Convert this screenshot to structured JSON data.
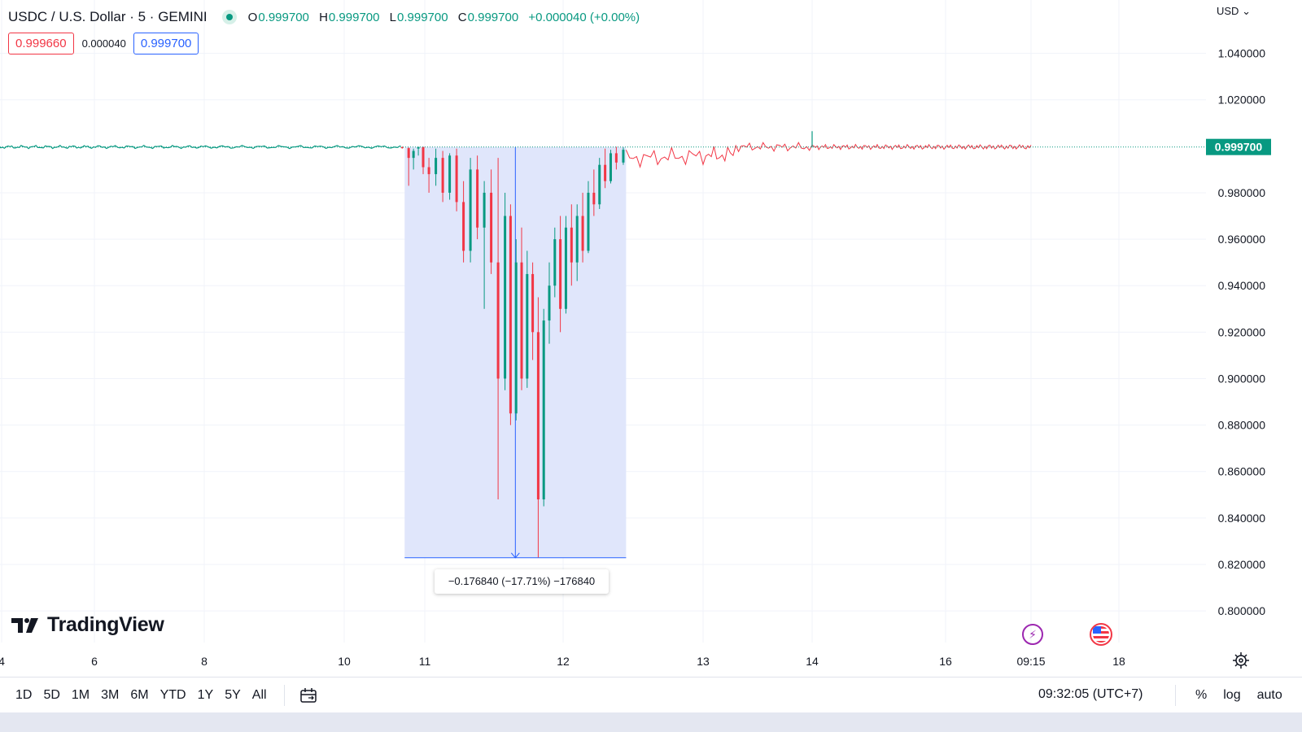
{
  "header": {
    "symbol": "USDC / U.S. Dollar · 5 · GEMINI",
    "ohlc": [
      {
        "key": "O",
        "value": "0.999700"
      },
      {
        "key": "H",
        "value": "0.999700"
      },
      {
        "key": "L",
        "value": "0.999700"
      },
      {
        "key": "C",
        "value": "0.999700"
      }
    ],
    "change": "+0.000040 (+0.00%)",
    "bid": "0.999660",
    "spread": "0.000040",
    "ask": "0.999700",
    "currency": "USD"
  },
  "colors": {
    "up": "#089981",
    "down": "#f23645",
    "accent": "#2962ff",
    "measure_fill": "#dee5fb",
    "grid": "#f0f3fa"
  },
  "measure": {
    "label": "−0.176840 (−17.71%) −176840",
    "from_price": 0.9997,
    "to_price": 0.82286,
    "from_x": 10.75,
    "to_x": 12.45
  },
  "brand": {
    "name": "TradingView"
  },
  "toolbar": {
    "ranges": [
      "1D",
      "5D",
      "1M",
      "3M",
      "6M",
      "YTD",
      "1Y",
      "5Y",
      "All"
    ],
    "time": "09:32:05 (UTC+7)",
    "percent": "%",
    "log": "log",
    "auto": "auto"
  },
  "events": [
    "lightning-icon",
    "us-flag-icon"
  ],
  "chart_data": {
    "type": "candlestick",
    "title": "USDC / U.S. Dollar · 5 · GEMINI",
    "last_price": 0.9997,
    "last_price_label": "0.999700",
    "ylim": [
      0.79,
      1.0495
    ],
    "y_ticks": [
      1.04,
      1.02,
      0.98,
      0.96,
      0.94,
      0.92,
      0.9,
      0.88,
      0.86,
      0.84,
      0.82,
      0.8
    ],
    "y_tick_labels": [
      "1.040000",
      "1.020000",
      "0.980000",
      "0.960000",
      "0.940000",
      "0.920000",
      "0.900000",
      "0.880000",
      "0.860000",
      "0.840000",
      "0.820000",
      "0.800000"
    ],
    "x_ticks": [
      {
        "x": 4,
        "label": "4"
      },
      {
        "x": 6,
        "label": "6"
      },
      {
        "x": 8,
        "label": "8"
      },
      {
        "x": 10,
        "label": "10"
      },
      {
        "x": 11,
        "label": "11"
      },
      {
        "x": 12,
        "label": "12"
      },
      {
        "x": 13,
        "label": "13"
      },
      {
        "x": 14,
        "label": "14"
      },
      {
        "x": 16,
        "label": "16"
      },
      {
        "x": 17.3,
        "label": "09:15"
      },
      {
        "x": 18,
        "label": "18"
      }
    ],
    "candles": [
      [
        10.72,
        0.9996,
        0.9999,
        0.999,
        0.9992
      ],
      [
        10.8,
        0.9992,
        0.9995,
        0.983,
        0.995
      ],
      [
        10.86,
        0.995,
        0.999,
        0.99,
        0.998
      ],
      [
        10.92,
        0.999,
        0.9998,
        0.996,
        0.9997
      ],
      [
        10.98,
        0.9997,
        0.9998,
        0.988,
        0.991
      ],
      [
        11.03,
        0.991,
        0.995,
        0.98,
        0.988
      ],
      [
        11.08,
        0.988,
        0.999,
        0.983,
        0.995
      ],
      [
        11.13,
        0.995,
        0.998,
        0.976,
        0.98
      ],
      [
        11.18,
        0.98,
        0.997,
        0.977,
        0.996
      ],
      [
        11.23,
        0.996,
        0.999,
        0.972,
        0.976
      ],
      [
        11.28,
        0.976,
        0.985,
        0.95,
        0.955
      ],
      [
        11.33,
        0.955,
        0.995,
        0.95,
        0.99
      ],
      [
        11.38,
        0.99,
        0.996,
        0.96,
        0.965
      ],
      [
        11.43,
        0.965,
        0.985,
        0.93,
        0.98
      ],
      [
        11.48,
        0.98,
        0.99,
        0.945,
        0.95
      ],
      [
        11.53,
        0.95,
        0.995,
        0.848,
        0.9
      ],
      [
        11.58,
        0.9,
        0.98,
        0.895,
        0.97
      ],
      [
        11.62,
        0.97,
        0.975,
        0.88,
        0.885
      ],
      [
        11.66,
        0.885,
        0.96,
        0.882,
        0.95
      ],
      [
        11.7,
        0.95,
        0.965,
        0.895,
        0.9
      ],
      [
        11.74,
        0.9,
        0.955,
        0.896,
        0.945
      ],
      [
        11.78,
        0.945,
        0.95,
        0.908,
        0.92
      ],
      [
        11.82,
        0.92,
        0.935,
        0.823,
        0.848
      ],
      [
        11.86,
        0.848,
        0.93,
        0.845,
        0.925
      ],
      [
        11.9,
        0.925,
        0.95,
        0.915,
        0.94
      ],
      [
        11.94,
        0.94,
        0.965,
        0.935,
        0.96
      ],
      [
        11.98,
        0.96,
        0.97,
        0.92,
        0.93
      ],
      [
        12.02,
        0.93,
        0.97,
        0.928,
        0.965
      ],
      [
        12.06,
        0.965,
        0.975,
        0.94,
        0.95
      ],
      [
        12.1,
        0.95,
        0.975,
        0.942,
        0.97
      ],
      [
        12.14,
        0.97,
        0.98,
        0.95,
        0.955
      ],
      [
        12.18,
        0.955,
        0.985,
        0.954,
        0.98
      ],
      [
        12.22,
        0.98,
        0.99,
        0.97,
        0.975
      ],
      [
        12.26,
        0.975,
        0.995,
        0.973,
        0.992
      ],
      [
        12.3,
        0.992,
        0.999,
        0.982,
        0.985
      ],
      [
        12.34,
        0.985,
        0.9985,
        0.984,
        0.997
      ],
      [
        12.38,
        0.997,
        0.9998,
        0.99,
        0.993
      ],
      [
        12.43,
        0.993,
        0.9995,
        0.992,
        0.9985
      ]
    ]
  }
}
